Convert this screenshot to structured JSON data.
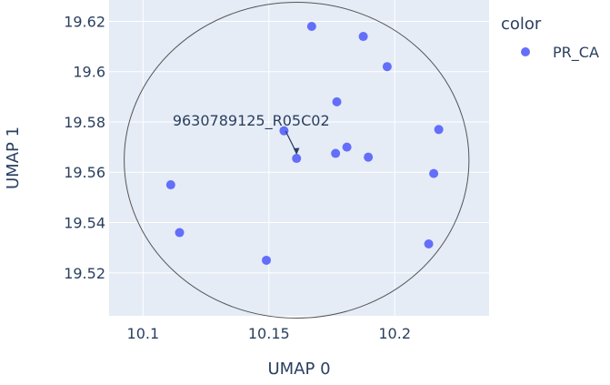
{
  "chart_data": {
    "type": "scatter",
    "title": "",
    "xlabel": "UMAP 0",
    "ylabel": "UMAP 1",
    "xlim": [
      10.0865,
      10.2375
    ],
    "ylim": [
      19.5029,
      19.6285
    ],
    "x_ticks": [
      10.1,
      10.15,
      10.2
    ],
    "x_tick_labels": [
      "10.1",
      "10.15",
      "10.2"
    ],
    "y_ticks": [
      19.52,
      19.54,
      19.56,
      19.58,
      19.6,
      19.62
    ],
    "y_tick_labels": [
      "19.52",
      "19.54",
      "19.56",
      "19.58",
      "19.6",
      "19.62"
    ],
    "grid": true,
    "plot_background": "#e5ecf6",
    "legend": {
      "title": "color",
      "placement": "right",
      "entries": [
        {
          "name": "PR_CA",
          "color": "#636efa"
        }
      ]
    },
    "series": [
      {
        "name": "PR_CA",
        "color": "#636efa",
        "x": [
          10.167,
          10.1875,
          10.197,
          10.177,
          10.156,
          10.161,
          10.181,
          10.1765,
          10.1895,
          10.2175,
          10.2155,
          10.111,
          10.1145,
          10.149,
          10.2135
        ],
        "y": [
          19.618,
          19.614,
          19.602,
          19.588,
          19.5765,
          19.5655,
          19.57,
          19.5675,
          19.566,
          19.577,
          19.5595,
          19.555,
          19.536,
          19.525,
          19.5315
        ]
      }
    ],
    "annotation": {
      "text": "9630789125_R05C02",
      "x": 10.161,
      "y": 19.5655
    },
    "circle": {
      "center_x": 10.161,
      "center_y": 19.5648,
      "radius_x": 0.0685,
      "radius_y": 0.0628,
      "color": "#555555"
    }
  }
}
